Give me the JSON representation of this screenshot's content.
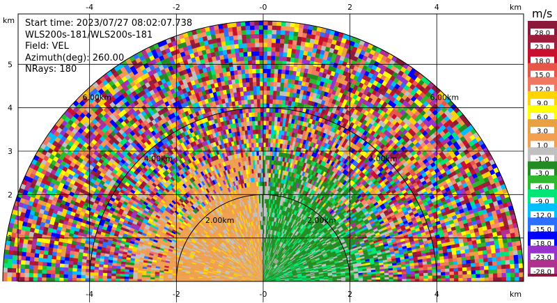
{
  "info": {
    "start_time": "Start time: 2023/07/27 08:02:07.738",
    "station": "WLS200s-181/WLS200s-181",
    "field": "Field: VEL",
    "azimuth": "Azimuth(deg): 260.00",
    "nrays": "NRays: 180"
  },
  "colorbar": {
    "unit": "m/s",
    "labels": [
      "28.0",
      "23.0",
      "18.0",
      "15.0",
      "12.0",
      "9.0",
      "6.0",
      "3.0",
      "1.0",
      "-1.0",
      "-3.0",
      "-6.0",
      "-9.0",
      "-12.0",
      "-15.0",
      "-18.0",
      "-23.0",
      "-28.0"
    ],
    "colors": [
      "#8b1a3a",
      "#9e1c3c",
      "#c8102e",
      "#e8564a",
      "#f07860",
      "#ffd400",
      "#ffff00",
      "#e8a040",
      "#f0a050",
      "#c0c0c0",
      "#228b22",
      "#2eb82e",
      "#00e676",
      "#00bfff",
      "#2a6fff",
      "#0000ff",
      "#9932cc",
      "#b03090",
      "#8b1a3a"
    ]
  },
  "chart_data": {
    "type": "heatmap",
    "title": "",
    "xlabel": "",
    "ylabel": "",
    "x_unit": "km",
    "y_unit": "km",
    "xlim": [
      -6,
      6
    ],
    "ylim": [
      0,
      6
    ],
    "x_ticks": [
      "-4",
      "-2",
      "-0",
      "2",
      "4"
    ],
    "y_ticks": [
      "1",
      "2",
      "3",
      "4",
      "5"
    ],
    "x_tick_values": [
      -4,
      -2,
      0,
      2,
      4
    ],
    "y_tick_values": [
      1,
      2,
      3,
      4,
      5
    ],
    "range_rings": [
      {
        "range_km": 2,
        "label": "2.00km"
      },
      {
        "range_km": 4,
        "label": "4.00km"
      },
      {
        "range_km": 6,
        "label": "6.00km"
      }
    ],
    "max_range_km": 6,
    "field": "VEL",
    "units": "m/s"
  }
}
